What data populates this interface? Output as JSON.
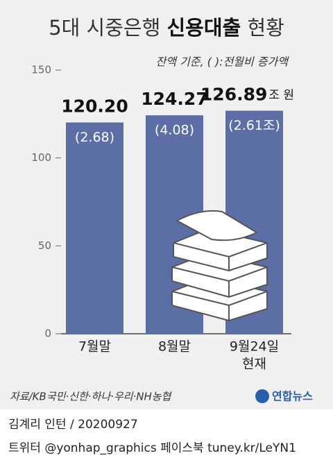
{
  "chart_data": {
    "type": "bar",
    "title": [
      "5대 시중은행",
      "신용대출",
      "현황"
    ],
    "subtitle": "잔액 기준, ( ):전월비 증가액",
    "unit": "조 원",
    "categories": [
      [
        "7월말"
      ],
      [
        "8월말"
      ],
      [
        "9월24일",
        "현재"
      ]
    ],
    "values": [
      120.2,
      124.27,
      126.89
    ],
    "value_labels": [
      "120.20",
      "124.27",
      "126.89"
    ],
    "changes": [
      2.68,
      4.08,
      2.61
    ],
    "change_labels": [
      "(2.68)",
      "(4.08)",
      "(2.61조)"
    ],
    "color": "#5c6ea6",
    "ylim": [
      0,
      150
    ],
    "yticks": [
      0,
      50,
      100,
      150
    ],
    "source": "자료/KB국민·신한·하나·우리·NH농협",
    "logo": "연합뉴스",
    "credit": "김계리 인턴 / 20200927",
    "social": "트위터 @yonhap_graphics  페이스북 tuney.kr/LeYN1"
  }
}
